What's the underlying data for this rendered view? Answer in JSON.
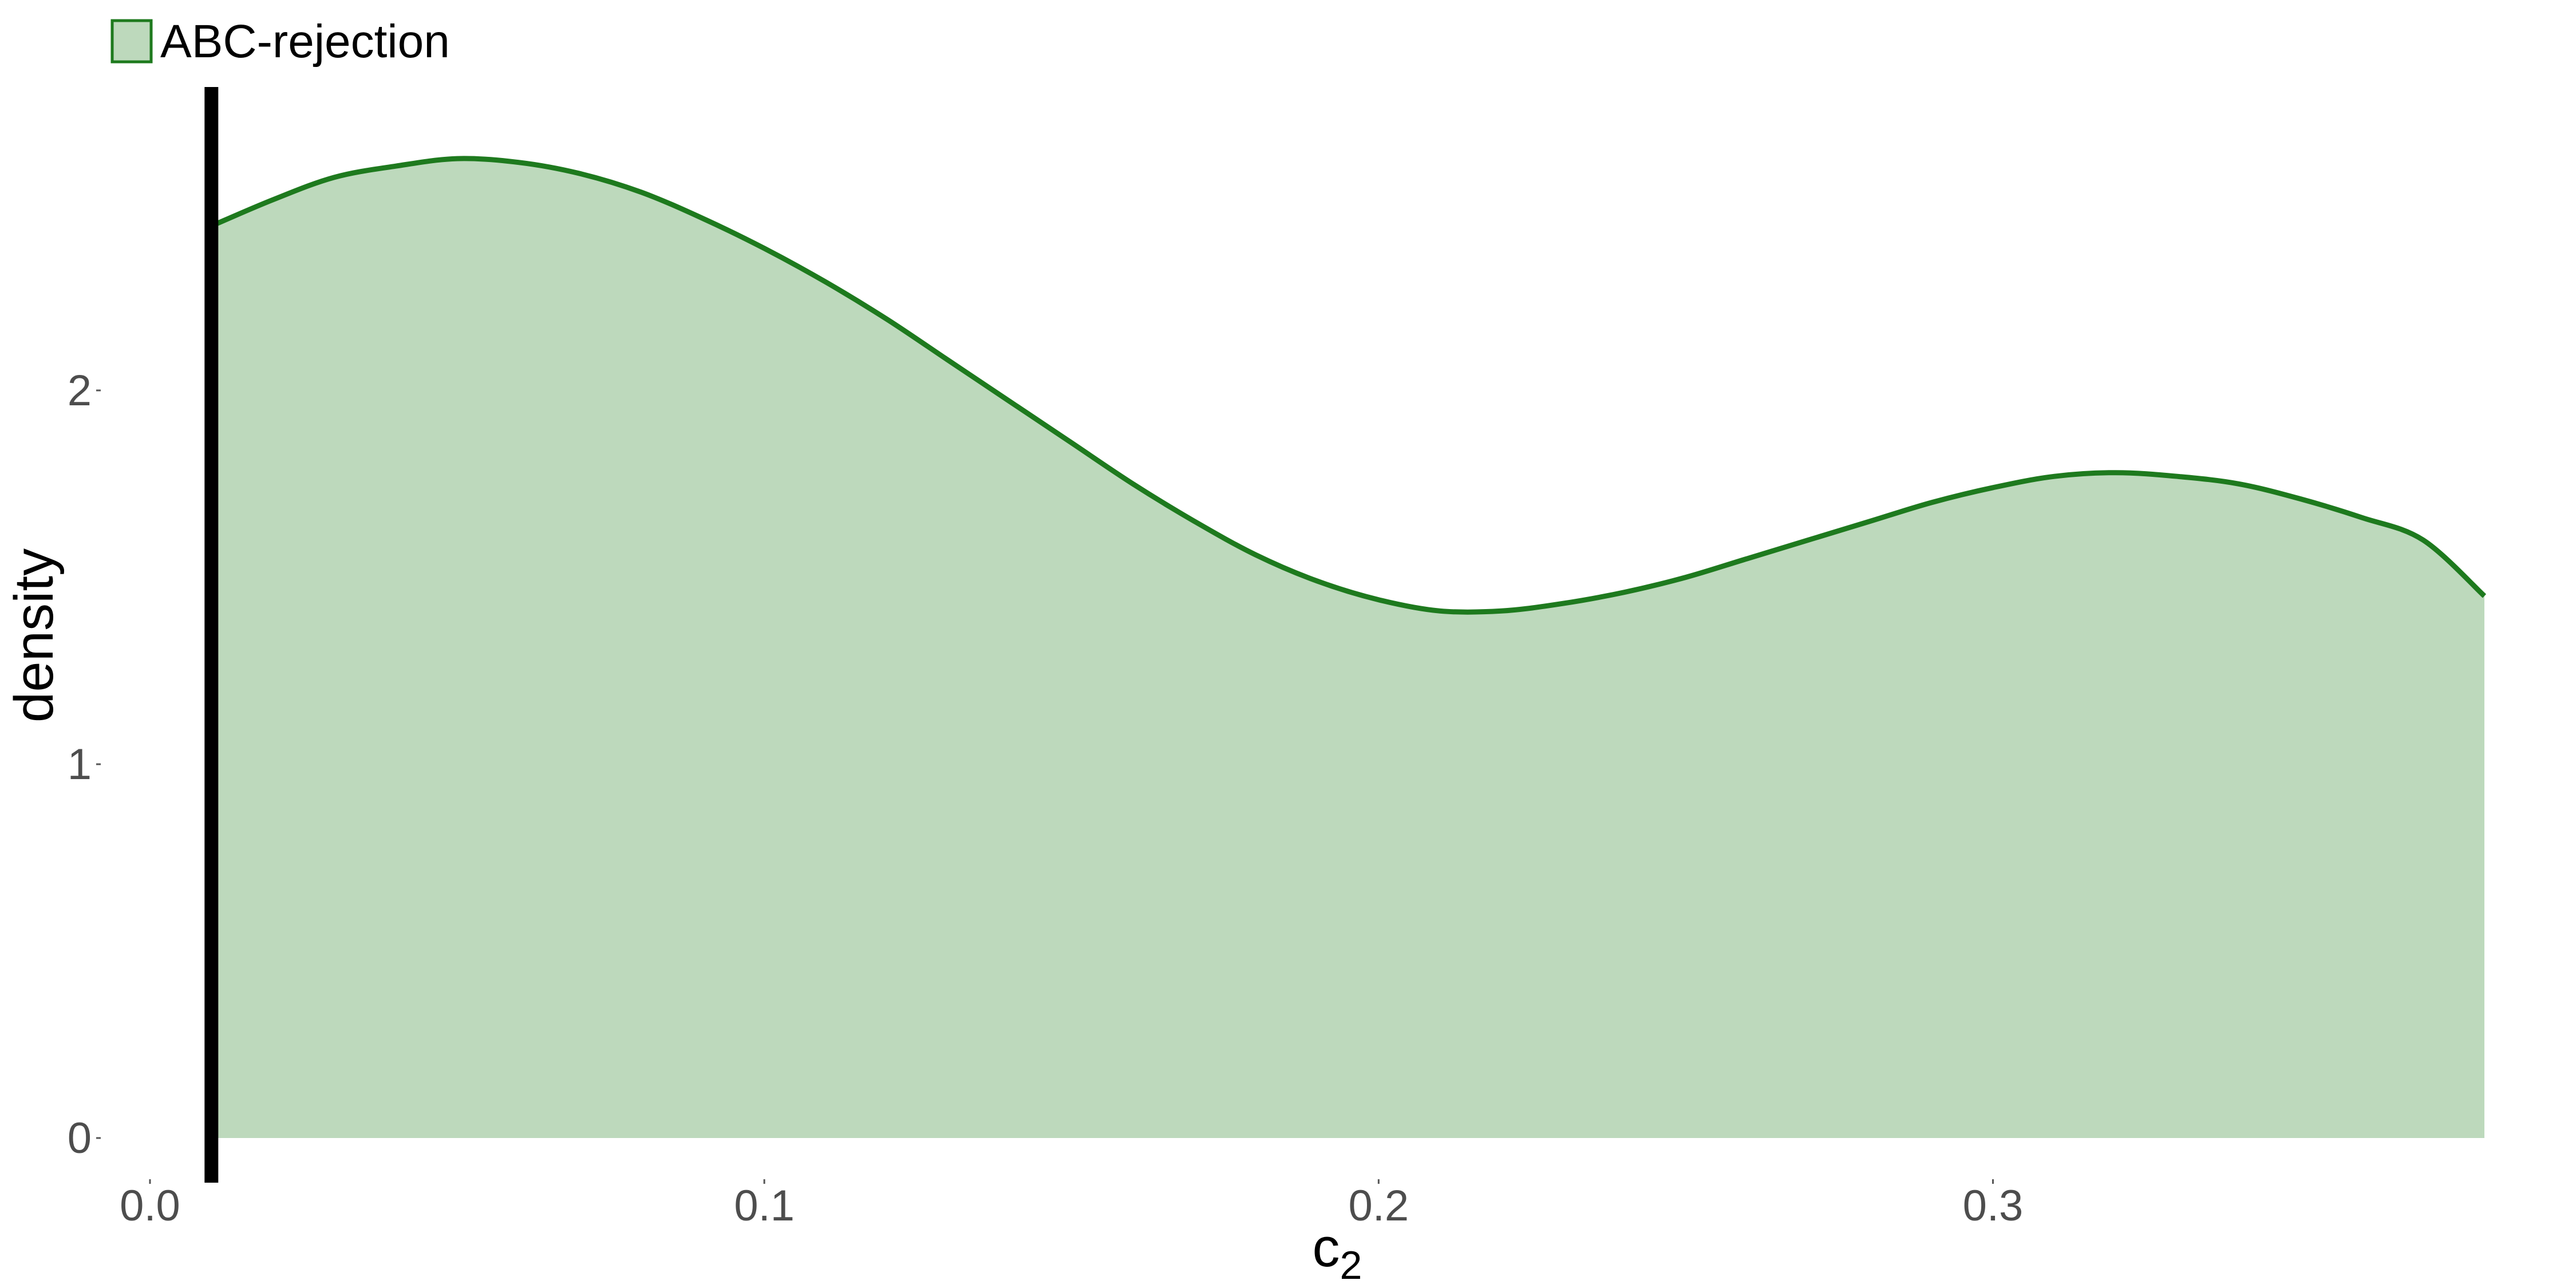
{
  "chart_data": {
    "type": "area",
    "xlabel": "c",
    "xlabel_subscript": "2",
    "ylabel": "density",
    "xlim": [
      0.0,
      0.38
    ],
    "ylim": [
      0,
      2.6
    ],
    "x_ticks": [
      0.0,
      0.1,
      0.2,
      0.3
    ],
    "x_tick_labels": [
      "0.0",
      "0.1",
      "0.2",
      "0.3"
    ],
    "y_ticks": [
      0,
      1,
      2
    ],
    "y_tick_labels": [
      "0",
      "1",
      "2"
    ],
    "grid": false,
    "legend_position": "top-left",
    "series": [
      {
        "name": "ABC-rejection",
        "fill_color": "#bdd9bc",
        "line_color": "#1e7a1e",
        "x": [
          0.01,
          0.02,
          0.03,
          0.04,
          0.05,
          0.06,
          0.07,
          0.08,
          0.09,
          0.1,
          0.11,
          0.12,
          0.13,
          0.14,
          0.15,
          0.16,
          0.17,
          0.18,
          0.19,
          0.2,
          0.21,
          0.22,
          0.23,
          0.24,
          0.25,
          0.26,
          0.27,
          0.28,
          0.29,
          0.3,
          0.31,
          0.32,
          0.33,
          0.34,
          0.35,
          0.36,
          0.37,
          0.38
        ],
        "y": [
          2.44,
          2.51,
          2.57,
          2.6,
          2.62,
          2.61,
          2.58,
          2.53,
          2.46,
          2.38,
          2.29,
          2.19,
          2.08,
          1.97,
          1.86,
          1.75,
          1.65,
          1.56,
          1.49,
          1.44,
          1.41,
          1.41,
          1.43,
          1.46,
          1.5,
          1.55,
          1.6,
          1.65,
          1.7,
          1.74,
          1.77,
          1.78,
          1.77,
          1.75,
          1.71,
          1.66,
          1.6,
          1.45
        ]
      }
    ],
    "vertical_line": {
      "x": 0.01,
      "color": "#000000"
    }
  }
}
